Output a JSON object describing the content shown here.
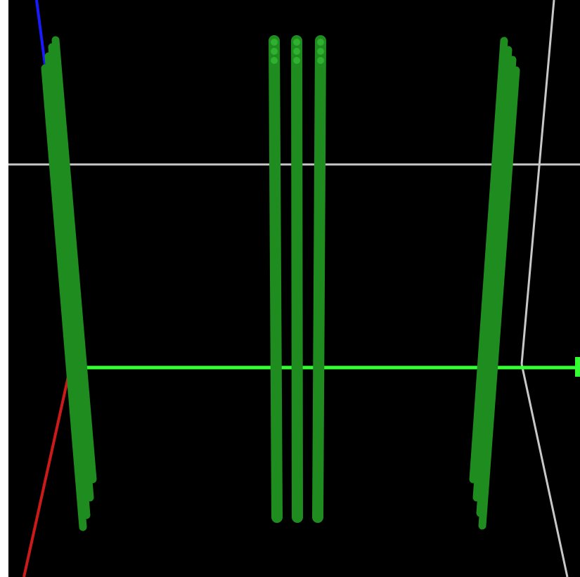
{
  "viewer": {
    "background_color": "#000000",
    "frame_color": "#ffffff"
  },
  "axes": {
    "x_axis_color": "#cc1a1a",
    "y_axis_color": "#33ff33",
    "z_axis_color": "#1a1aff"
  },
  "guides": {
    "line_color": "#c8c8c8"
  },
  "rods": {
    "color": "#1e8c1e",
    "highlight_color": "#2fb02f",
    "groups": [
      {
        "name": "left-rod-cluster",
        "rod_count": 4
      },
      {
        "name": "center-rod-cluster",
        "rod_count": 3
      },
      {
        "name": "right-rod-cluster",
        "rod_count": 4
      }
    ]
  }
}
